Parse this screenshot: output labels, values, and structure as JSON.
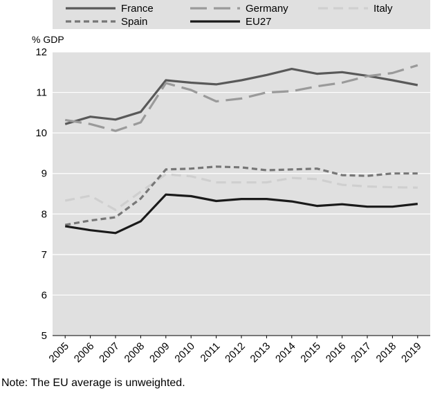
{
  "chart_data": {
    "type": "line",
    "x": [
      "2005",
      "2006",
      "2007",
      "2008",
      "2009",
      "2010",
      "2011",
      "2012",
      "2013",
      "2014",
      "2015",
      "2016",
      "2017",
      "2018",
      "2019"
    ],
    "series": [
      {
        "name": "France",
        "color": "#595959",
        "style": "solid",
        "values": [
          10.22,
          10.4,
          10.33,
          10.52,
          11.3,
          11.24,
          11.2,
          11.3,
          11.43,
          11.58,
          11.46,
          11.5,
          11.41,
          11.3,
          11.18
        ]
      },
      {
        "name": "Germany",
        "color": "#9a9a9a",
        "style": "long-dash",
        "values": [
          10.32,
          10.22,
          10.05,
          10.26,
          11.23,
          11.06,
          10.78,
          10.85,
          11.0,
          11.03,
          11.15,
          11.24,
          11.4,
          11.48,
          11.67
        ]
      },
      {
        "name": "Italy",
        "color": "#cfcfcf",
        "style": "dash",
        "values": [
          8.33,
          8.45,
          8.1,
          8.55,
          8.98,
          8.93,
          8.78,
          8.78,
          8.78,
          8.89,
          8.86,
          8.72,
          8.68,
          8.66,
          8.65
        ]
      },
      {
        "name": "Spain",
        "color": "#777777",
        "style": "short-dash",
        "values": [
          7.73,
          7.84,
          7.92,
          8.38,
          9.1,
          9.12,
          9.17,
          9.15,
          9.08,
          9.1,
          9.12,
          8.96,
          8.94,
          9.0,
          9.0
        ]
      },
      {
        "name": "EU27",
        "color": "#1a1a1a",
        "style": "solid",
        "values": [
          7.7,
          7.6,
          7.53,
          7.82,
          8.48,
          8.44,
          8.32,
          8.37,
          8.37,
          8.31,
          8.2,
          8.24,
          8.18,
          8.18,
          8.25
        ]
      }
    ],
    "ylabel": "% GDP",
    "ylim": [
      5,
      12
    ],
    "yticks": [
      "5",
      "6",
      "7",
      "8",
      "9",
      "10",
      "11",
      "12"
    ],
    "grid": "horizontal",
    "legend": "top",
    "plot_background": "#e0e0e0"
  },
  "note": "Note: The EU average is unweighted."
}
